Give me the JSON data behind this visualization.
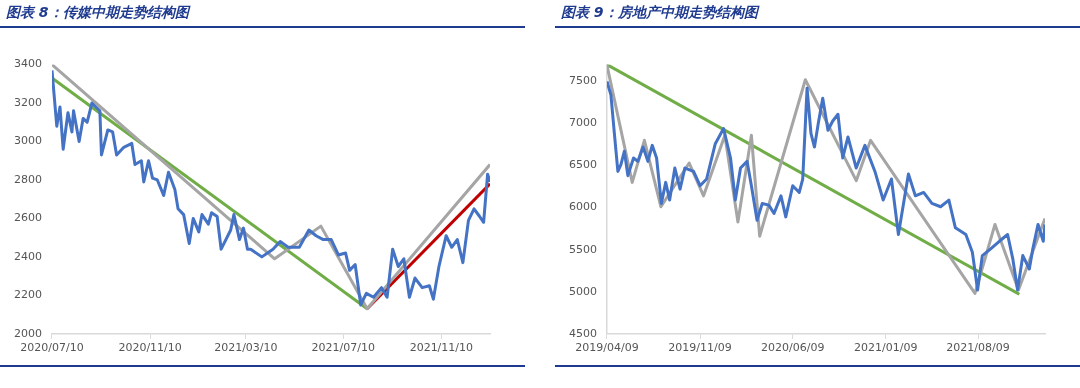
{
  "chart_data": [
    {
      "type": "line",
      "title": "图表 8：传媒中期走势结构图",
      "xlim": [
        "2020-07-10",
        "2022-01-10"
      ],
      "xticks": [
        {
          "value": "2020-07-10",
          "label": "2020/07/10"
        },
        {
          "value": "2020-11-10",
          "label": "2020/11/10"
        },
        {
          "value": "2021-03-10",
          "label": "2021/03/10"
        },
        {
          "value": "2021-07-10",
          "label": "2021/07/10"
        },
        {
          "value": "2021-11-10",
          "label": "2021/11/10"
        }
      ],
      "ylim": [
        2000,
        3400
      ],
      "yticks": [
        2000,
        2200,
        2400,
        2600,
        2800,
        3000,
        3200,
        3400
      ],
      "series": [
        {
          "color": "#4472c4",
          "x": [
            "2020-07-10",
            "2020-07-16",
            "2020-07-20",
            "2020-07-24",
            "2020-07-30",
            "2020-08-04",
            "2020-08-06",
            "2020-08-13",
            "2020-08-18",
            "2020-08-23",
            "2020-08-29",
            "2020-09-08",
            "2020-09-10",
            "2020-09-18",
            "2020-09-24",
            "2020-09-29",
            "2020-10-08",
            "2020-10-18",
            "2020-10-22",
            "2020-10-30",
            "2020-11-02",
            "2020-11-08",
            "2020-11-13",
            "2020-11-19",
            "2020-11-27",
            "2020-12-03",
            "2020-12-11",
            "2020-12-15",
            "2020-12-22",
            "2020-12-29",
            "2021-01-03",
            "2021-01-10",
            "2021-01-14",
            "2021-01-22",
            "2021-01-26",
            "2021-02-02",
            "2021-02-07",
            "2021-02-19",
            "2021-02-23",
            "2021-03-02",
            "2021-03-07",
            "2021-03-12",
            "2021-03-16",
            "2021-03-30",
            "2021-04-13",
            "2021-04-22",
            "2021-05-02",
            "2021-05-16",
            "2021-05-28",
            "2021-06-06",
            "2021-06-15",
            "2021-06-25",
            "2021-07-04",
            "2021-07-13",
            "2021-07-18",
            "2021-07-25",
            "2021-08-01",
            "2021-08-08",
            "2021-08-17",
            "2021-08-27",
            "2021-09-03",
            "2021-09-10",
            "2021-09-17",
            "2021-09-24",
            "2021-10-01",
            "2021-10-08",
            "2021-10-17",
            "2021-10-26",
            "2021-10-31",
            "2021-11-07",
            "2021-11-16",
            "2021-11-23",
            "2021-11-30",
            "2021-12-07",
            "2021-12-14",
            "2021-12-21",
            "2021-12-28",
            "2022-01-02",
            "2022-01-07",
            "2022-01-10"
          ],
          "values": [
            3370,
            3080,
            3180,
            2960,
            3150,
            3050,
            3160,
            3000,
            3120,
            3100,
            3200,
            3160,
            2930,
            3060,
            3050,
            2930,
            2970,
            2990,
            2880,
            2900,
            2790,
            2900,
            2810,
            2800,
            2720,
            2840,
            2750,
            2650,
            2620,
            2470,
            2600,
            2530,
            2620,
            2570,
            2630,
            2610,
            2440,
            2540,
            2620,
            2490,
            2550,
            2440,
            2440,
            2400,
            2440,
            2480,
            2450,
            2450,
            2540,
            2510,
            2490,
            2490,
            2410,
            2420,
            2330,
            2360,
            2150,
            2210,
            2190,
            2240,
            2190,
            2440,
            2350,
            2390,
            2190,
            2290,
            2240,
            2250,
            2180,
            2350,
            2510,
            2450,
            2490,
            2370,
            2590,
            2650,
            2610,
            2580,
            2830,
            2790
          ]
        },
        {
          "color": "#a5a5a5",
          "x": [
            "2020-07-10",
            "2021-04-15",
            "2021-06-12",
            "2021-08-09",
            "2022-01-10"
          ],
          "values": [
            3400,
            2390,
            2560,
            2130,
            2880
          ]
        },
        {
          "color": "#70ad47",
          "x": [
            "2020-07-10",
            "2021-08-09"
          ],
          "values": [
            3330,
            2130
          ]
        },
        {
          "color": "#c00000",
          "x": [
            "2021-08-09",
            "2022-01-10"
          ],
          "values": [
            2130,
            2780
          ]
        }
      ]
    },
    {
      "type": "line",
      "title": "图表 9：房地产中期走势结构图",
      "xlim": [
        "2019-04-09",
        "2022-01-10"
      ],
      "xticks": [
        {
          "value": "2019-04-09",
          "label": "2019/04/09"
        },
        {
          "value": "2019-11-09",
          "label": "2019/11/09"
        },
        {
          "value": "2020-06-09",
          "label": "2020/06/09"
        },
        {
          "value": "2021-01-09",
          "label": "2021/01/09"
        },
        {
          "value": "2021-08-09",
          "label": "2021/08/09"
        }
      ],
      "ylim": [
        4500,
        7700
      ],
      "yticks": [
        4500,
        5000,
        5500,
        6000,
        6500,
        7000,
        7500
      ],
      "series": [
        {
          "color": "#4472c4",
          "x": [
            "2019-04-09",
            "2019-04-18",
            "2019-04-26",
            "2019-05-04",
            "2019-05-11",
            "2019-05-19",
            "2019-05-27",
            "2019-06-09",
            "2019-06-19",
            "2019-07-01",
            "2019-07-12",
            "2019-07-22",
            "2019-08-01",
            "2019-08-12",
            "2019-08-22",
            "2019-08-31",
            "2019-09-12",
            "2019-09-24",
            "2019-10-05",
            "2019-10-25",
            "2019-11-09",
            "2019-11-24",
            "2019-12-14",
            "2020-01-02",
            "2020-01-18",
            "2020-01-29",
            "2020-02-10",
            "2020-02-25",
            "2020-03-06",
            "2020-03-19",
            "2020-03-31",
            "2020-04-15",
            "2020-04-27",
            "2020-05-13",
            "2020-05-24",
            "2020-06-09",
            "2020-06-24",
            "2020-07-02",
            "2020-07-12",
            "2020-07-21",
            "2020-07-29",
            "2020-08-07",
            "2020-08-17",
            "2020-08-29",
            "2020-09-09",
            "2020-09-21",
            "2020-10-02",
            "2020-10-14",
            "2020-11-02",
            "2020-11-22",
            "2020-12-15",
            "2021-01-03",
            "2021-01-22",
            "2021-02-07",
            "2021-03-02",
            "2021-03-18",
            "2021-04-06",
            "2021-04-25",
            "2021-05-15",
            "2021-06-03",
            "2021-06-18",
            "2021-07-12",
            "2021-07-27",
            "2021-08-08",
            "2021-08-19",
            "2021-09-07",
            "2021-09-27",
            "2021-10-16",
            "2021-10-28",
            "2021-11-08",
            "2021-11-20",
            "2021-12-05",
            "2021-12-13",
            "2021-12-25",
            "2022-01-06",
            "2022-01-10"
          ],
          "values": [
            7500,
            7340,
            6880,
            6430,
            6510,
            6670,
            6380,
            6590,
            6550,
            6720,
            6550,
            6740,
            6590,
            6050,
            6300,
            6090,
            6470,
            6220,
            6470,
            6430,
            6260,
            6340,
            6760,
            6940,
            6590,
            6090,
            6470,
            6550,
            6260,
            5850,
            6050,
            6030,
            5930,
            6140,
            5890,
            6260,
            6180,
            6340,
            7420,
            6880,
            6720,
            7010,
            7300,
            6920,
            7030,
            7110,
            6590,
            6840,
            6470,
            6740,
            6430,
            6090,
            6340,
            5680,
            6400,
            6140,
            6180,
            6050,
            6010,
            6090,
            5760,
            5680,
            5470,
            5020,
            5430,
            5510,
            5600,
            5680,
            5390,
            5020,
            5430,
            5270,
            5510,
            5800,
            5600,
            5800
          ]
        },
        {
          "color": "#a5a5a5",
          "x": [
            "2019-04-09",
            "2019-06-06",
            "2019-07-04",
            "2019-08-11",
            "2019-10-15",
            "2019-11-17",
            "2020-01-05",
            "2020-02-04",
            "2020-03-06",
            "2020-03-25",
            "2020-07-08",
            "2020-11-02",
            "2020-12-05",
            "2021-08-02",
            "2021-09-17",
            "2021-11-10",
            "2022-01-10"
          ],
          "values": [
            7690,
            6300,
            6800,
            6010,
            6530,
            6140,
            6860,
            5830,
            6860,
            5660,
            7520,
            6320,
            6800,
            4980,
            5800,
            5020,
            5870
          ]
        },
        {
          "color": "#70ad47",
          "x": [
            "2019-04-09",
            "2021-11-12"
          ],
          "values": [
            7700,
            4970
          ]
        }
      ]
    }
  ]
}
